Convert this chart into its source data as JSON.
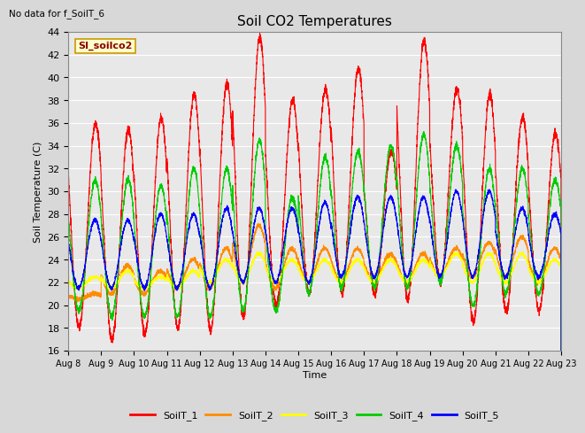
{
  "title": "Soil CO2 Temperatures",
  "ylabel": "Soil Temperature (C)",
  "xlabel": "Time",
  "top_left_note": "No data for f_SoilT_6",
  "annotation": "SI_soilco2",
  "ylim": [
    16,
    44
  ],
  "yticks": [
    16,
    18,
    20,
    22,
    24,
    26,
    28,
    30,
    32,
    34,
    36,
    38,
    40,
    42,
    44
  ],
  "x_labels": [
    "Aug 8",
    "Aug 9",
    "Aug 10",
    "Aug 11",
    "Aug 12",
    "Aug 13",
    "Aug 14",
    "Aug 15",
    "Aug 16",
    "Aug 17",
    "Aug 18",
    "Aug 19",
    "Aug 20",
    "Aug 21",
    "Aug 22",
    "Aug 23"
  ],
  "colors": {
    "SoilT_1": "#ff0000",
    "SoilT_2": "#ff8c00",
    "SoilT_3": "#ffff00",
    "SoilT_4": "#00cc00",
    "SoilT_5": "#0000ff"
  },
  "series_labels": [
    "SoilT_1",
    "SoilT_2",
    "SoilT_3",
    "SoilT_4",
    "SoilT_5"
  ],
  "background_color": "#d8d8d8",
  "plot_bg_color": "#e8e8e8",
  "grid_color": "#cccccc",
  "annotation_bg": "#ffffcc",
  "annotation_border": "#cc9900",
  "soilT1_daily_peaks": [
    36,
    35.5,
    36.5,
    38.5,
    39.5,
    43.5,
    38,
    39,
    40.8,
    33.5,
    43.2,
    39,
    38.5,
    36.5,
    35
  ],
  "soilT1_daily_troughs": [
    18,
    17,
    17.5,
    18,
    17.8,
    19,
    20,
    21,
    21,
    21,
    20.5,
    22,
    18.5,
    19.5,
    19.5
  ],
  "soilT4_daily_peaks": [
    31,
    31,
    30.5,
    32,
    32,
    34.5,
    29.5,
    33,
    33.5,
    34,
    35,
    34,
    32,
    32,
    31
  ],
  "soilT4_daily_troughs": [
    19.5,
    19,
    19,
    19,
    19,
    19.5,
    19.5,
    21,
    21.5,
    21.5,
    21.5,
    22,
    20,
    21,
    21
  ],
  "soilT5_daily_peaks": [
    27.5,
    27.5,
    28,
    28,
    28.5,
    28.5,
    28.5,
    29,
    29.5,
    29.5,
    29.5,
    30,
    30,
    28.5,
    28
  ],
  "soilT5_daily_troughs": [
    21.5,
    21.5,
    21.5,
    21.5,
    21.5,
    22,
    22,
    22,
    22.5,
    22.5,
    22.5,
    22.5,
    22.5,
    22.5,
    22.5
  ],
  "soilT2_daily_peaks": [
    21,
    23.5,
    23,
    24,
    25,
    27,
    25,
    25,
    25,
    24.5,
    24.5,
    25,
    25.5,
    26,
    25
  ],
  "soilT2_daily_troughs": [
    20.5,
    21,
    21,
    21.5,
    21.5,
    22,
    21.5,
    22,
    22,
    22,
    22,
    22.5,
    22.5,
    22.5,
    22
  ],
  "soilT3_daily_peaks": [
    22.5,
    23,
    22.5,
    23,
    24,
    24.5,
    24,
    24,
    24,
    24,
    24,
    24.5,
    24.5,
    24.5,
    24
  ],
  "soilT3_daily_troughs": [
    21.5,
    21.5,
    21.5,
    21.5,
    22,
    22,
    22,
    22,
    22,
    22,
    22,
    22.5,
    22,
    22,
    22
  ]
}
